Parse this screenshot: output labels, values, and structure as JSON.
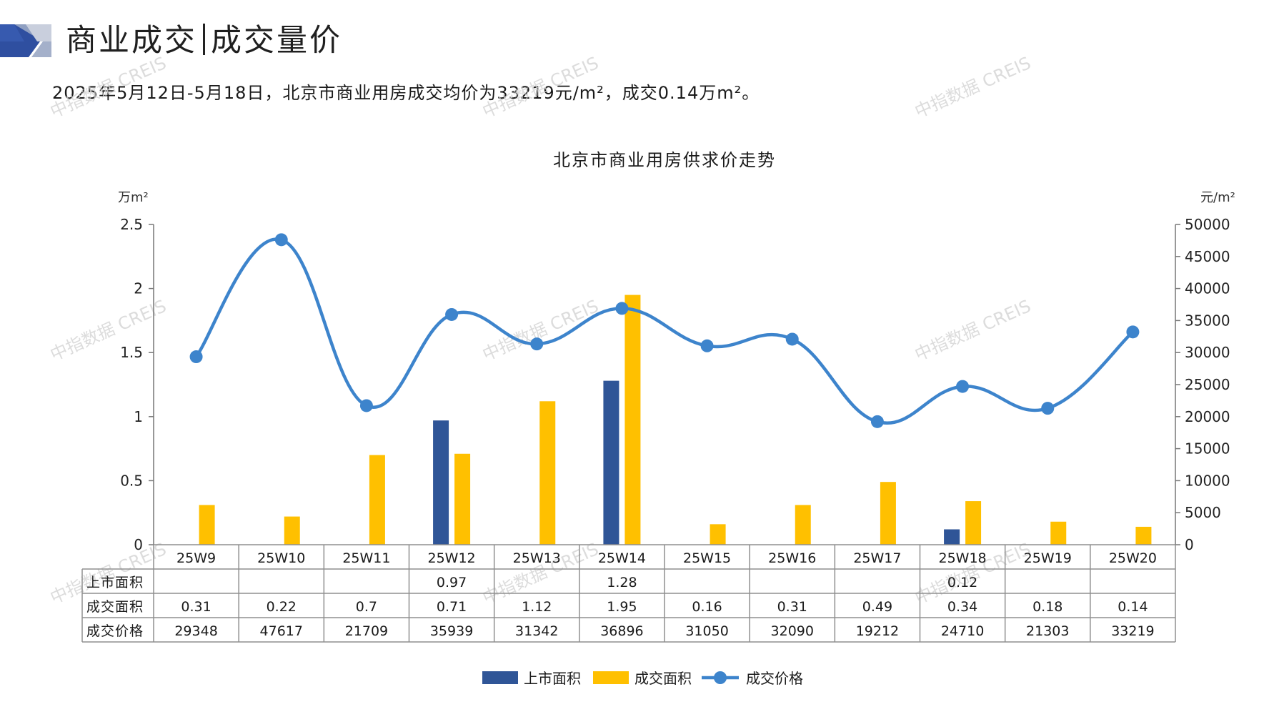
{
  "page": {
    "title_part1": "商业成交",
    "title_part2": "成交量价",
    "summary": "2025年5月12日-5月18日，北京市商业用房成交均价为33219元/m²，成交0.14万m²。",
    "watermark": "中指数据 CREIS"
  },
  "chart_data": {
    "type": "bar",
    "title": "北京市商业用房供求价走势",
    "categories": [
      "25W9",
      "25W10",
      "25W11",
      "25W12",
      "25W13",
      "25W14",
      "25W15",
      "25W16",
      "25W17",
      "25W18",
      "25W19",
      "25W20"
    ],
    "series": [
      {
        "name": "上市面积",
        "type": "bar",
        "axis": "left",
        "color": "#2F5597",
        "values": [
          null,
          null,
          null,
          0.97,
          null,
          1.28,
          null,
          null,
          null,
          0.12,
          null,
          null
        ],
        "table_labels": [
          "",
          "",
          "",
          "0.97",
          "",
          "1.28",
          "",
          "",
          "",
          "0.12",
          "",
          ""
        ]
      },
      {
        "name": "成交面积",
        "type": "bar",
        "axis": "left",
        "color": "#FFC000",
        "values": [
          0.31,
          0.22,
          0.7,
          0.71,
          1.12,
          1.95,
          0.16,
          0.31,
          0.49,
          0.34,
          0.18,
          0.14
        ],
        "table_labels": [
          "0.31",
          "0.22",
          "0.7",
          "0.71",
          "1.12",
          "1.95",
          "0.16",
          "0.31",
          "0.49",
          "0.34",
          "0.18",
          "0.14"
        ]
      },
      {
        "name": "成交价格",
        "type": "line",
        "axis": "right",
        "color": "#3D84CC",
        "values": [
          29348,
          47617,
          21709,
          35939,
          31342,
          36896,
          31050,
          32090,
          19212,
          24710,
          21303,
          33219
        ],
        "table_labels": [
          "29348",
          "47617",
          "21709",
          "35939",
          "31342",
          "36896",
          "31050",
          "32090",
          "19212",
          "24710",
          "21303",
          "33219"
        ]
      }
    ],
    "y_left": {
      "unit": "万m²",
      "ylim": [
        0,
        2.5
      ],
      "ticks": [
        "0",
        "0.5",
        "1",
        "1.5",
        "2",
        "2.5"
      ]
    },
    "y_right": {
      "unit": "元/m²",
      "ylim": [
        0,
        50000
      ],
      "ticks": [
        "0",
        "5000",
        "10000",
        "15000",
        "20000",
        "25000",
        "30000",
        "35000",
        "40000",
        "45000",
        "50000"
      ]
    },
    "legend_position": "bottom",
    "data_table": true,
    "grid": false
  }
}
